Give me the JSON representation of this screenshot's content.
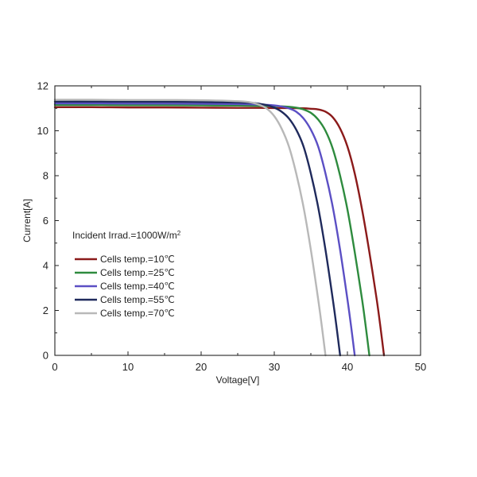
{
  "chart_data": {
    "type": "line",
    "xlabel": "Voltage[V]",
    "ylabel": "Current[A]",
    "xlim": [
      0,
      50
    ],
    "ylim": [
      0,
      12
    ],
    "xticks": [
      0,
      10,
      20,
      30,
      40,
      50
    ],
    "yticks": [
      0,
      2,
      4,
      6,
      8,
      10,
      12
    ],
    "grid": false,
    "legend_position": "left",
    "annotation": {
      "text": "Incident Irrad.=1000W/m",
      "superscript": "2"
    },
    "series": [
      {
        "name": "Cells temp.=10℃",
        "color": "#8b1a1a",
        "x": [
          0,
          5,
          10,
          15,
          20,
          25,
          28,
          30,
          32,
          34,
          35,
          36,
          37,
          38,
          39,
          40,
          41,
          42,
          43,
          44,
          44.5,
          45
        ],
        "y": [
          11.05,
          11.05,
          11.04,
          11.04,
          11.03,
          11.02,
          11.02,
          11.01,
          11.01,
          11.0,
          10.98,
          10.95,
          10.85,
          10.6,
          10.1,
          9.3,
          8.1,
          6.5,
          4.6,
          2.5,
          1.3,
          0
        ]
      },
      {
        "name": "Cells temp.=25℃",
        "color": "#2e8b3e",
        "x": [
          0,
          5,
          10,
          15,
          20,
          25,
          28,
          30,
          32,
          33,
          34,
          35,
          36,
          37,
          38,
          39,
          40,
          41,
          42,
          42.5,
          43
        ],
        "y": [
          11.15,
          11.15,
          11.14,
          11.14,
          11.13,
          11.12,
          11.11,
          11.1,
          11.07,
          11.03,
          10.95,
          10.8,
          10.5,
          10.0,
          9.2,
          8.0,
          6.5,
          4.6,
          2.5,
          1.3,
          0
        ]
      },
      {
        "name": "Cells temp.=40℃",
        "color": "#5b4fc4",
        "x": [
          0,
          5,
          10,
          15,
          20,
          25,
          28,
          30,
          31,
          32,
          33,
          34,
          35,
          36,
          37,
          38,
          39,
          40,
          40.5,
          41
        ],
        "y": [
          11.22,
          11.22,
          11.21,
          11.21,
          11.2,
          11.19,
          11.17,
          11.13,
          11.08,
          11.0,
          10.85,
          10.55,
          10.05,
          9.3,
          8.1,
          6.6,
          4.7,
          2.5,
          1.3,
          0
        ]
      },
      {
        "name": "Cells temp.=55℃",
        "color": "#1f2a5c",
        "x": [
          0,
          5,
          10,
          15,
          20,
          25,
          27,
          28,
          29,
          30,
          31,
          32,
          33,
          34,
          35,
          36,
          37,
          38,
          38.5,
          39
        ],
        "y": [
          11.3,
          11.3,
          11.29,
          11.29,
          11.28,
          11.26,
          11.24,
          11.2,
          11.14,
          11.03,
          10.85,
          10.55,
          10.05,
          9.3,
          8.1,
          6.6,
          4.7,
          2.5,
          1.3,
          0
        ]
      },
      {
        "name": "Cells temp.=70℃",
        "color": "#b8b8b8",
        "x": [
          0,
          5,
          10,
          15,
          20,
          24,
          26,
          27,
          28,
          29,
          30,
          31,
          32,
          33,
          34,
          35,
          36,
          36.5,
          37
        ],
        "y": [
          11.38,
          11.38,
          11.37,
          11.37,
          11.36,
          11.33,
          11.3,
          11.25,
          11.15,
          10.98,
          10.65,
          10.1,
          9.3,
          8.1,
          6.6,
          4.7,
          2.5,
          1.3,
          0
        ]
      }
    ]
  }
}
